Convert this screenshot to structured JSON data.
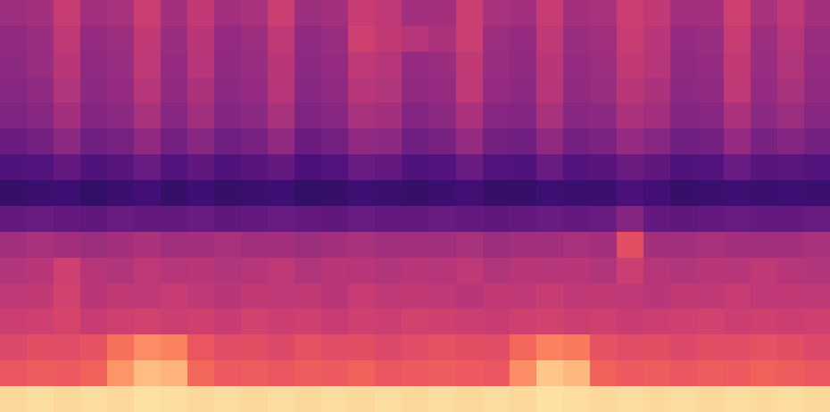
{
  "chart_data": {
    "type": "heatmap",
    "color": "magma",
    "color_range": [
      0,
      1
    ],
    "tick_labels": false,
    "cells": [
      [
        0.44,
        0.46,
        0.54,
        0.45,
        0.47,
        0.55,
        0.46,
        0.53,
        0.45,
        0.47,
        0.55,
        0.44,
        0.46,
        0.54,
        0.52,
        0.45,
        0.46,
        0.55,
        0.47,
        0.45,
        0.54,
        0.46,
        0.47,
        0.55,
        0.53,
        0.45,
        0.46,
        0.56,
        0.47,
        0.52,
        0.46
      ],
      [
        0.41,
        0.43,
        0.52,
        0.42,
        0.44,
        0.53,
        0.43,
        0.51,
        0.42,
        0.44,
        0.52,
        0.41,
        0.43,
        0.56,
        0.53,
        0.5,
        0.48,
        0.55,
        0.44,
        0.42,
        0.52,
        0.43,
        0.45,
        0.54,
        0.51,
        0.42,
        0.43,
        0.54,
        0.44,
        0.5,
        0.43
      ],
      [
        0.4,
        0.43,
        0.51,
        0.41,
        0.43,
        0.52,
        0.42,
        0.5,
        0.41,
        0.43,
        0.51,
        0.4,
        0.42,
        0.52,
        0.5,
        0.42,
        0.43,
        0.53,
        0.43,
        0.41,
        0.51,
        0.42,
        0.44,
        0.53,
        0.5,
        0.41,
        0.42,
        0.53,
        0.43,
        0.49,
        0.42
      ],
      [
        0.39,
        0.41,
        0.49,
        0.4,
        0.42,
        0.5,
        0.41,
        0.48,
        0.4,
        0.42,
        0.5,
        0.39,
        0.41,
        0.5,
        0.49,
        0.41,
        0.42,
        0.52,
        0.42,
        0.4,
        0.5,
        0.41,
        0.43,
        0.51,
        0.48,
        0.4,
        0.41,
        0.52,
        0.42,
        0.47,
        0.41
      ],
      [
        0.37,
        0.39,
        0.46,
        0.38,
        0.4,
        0.47,
        0.39,
        0.45,
        0.38,
        0.4,
        0.47,
        0.37,
        0.39,
        0.47,
        0.46,
        0.38,
        0.4,
        0.48,
        0.39,
        0.38,
        0.47,
        0.39,
        0.4,
        0.48,
        0.45,
        0.38,
        0.39,
        0.48,
        0.4,
        0.44,
        0.39
      ],
      [
        0.32,
        0.34,
        0.4,
        0.33,
        0.35,
        0.41,
        0.34,
        0.39,
        0.33,
        0.35,
        0.41,
        0.32,
        0.34,
        0.41,
        0.4,
        0.33,
        0.35,
        0.42,
        0.34,
        0.33,
        0.41,
        0.34,
        0.36,
        0.42,
        0.39,
        0.33,
        0.34,
        0.42,
        0.35,
        0.38,
        0.34
      ],
      [
        0.25,
        0.26,
        0.3,
        0.25,
        0.27,
        0.31,
        0.26,
        0.29,
        0.25,
        0.27,
        0.3,
        0.24,
        0.26,
        0.31,
        0.3,
        0.25,
        0.26,
        0.31,
        0.26,
        0.25,
        0.31,
        0.26,
        0.27,
        0.32,
        0.29,
        0.25,
        0.26,
        0.31,
        0.27,
        0.28,
        0.26
      ],
      [
        0.19,
        0.2,
        0.21,
        0.18,
        0.2,
        0.22,
        0.19,
        0.21,
        0.19,
        0.2,
        0.21,
        0.18,
        0.19,
        0.21,
        0.2,
        0.19,
        0.2,
        0.22,
        0.19,
        0.19,
        0.21,
        0.2,
        0.2,
        0.24,
        0.22,
        0.19,
        0.2,
        0.21,
        0.2,
        0.21,
        0.2
      ],
      [
        0.3,
        0.31,
        0.3,
        0.29,
        0.31,
        0.3,
        0.3,
        0.31,
        0.29,
        0.3,
        0.31,
        0.3,
        0.29,
        0.31,
        0.3,
        0.3,
        0.31,
        0.3,
        0.29,
        0.3,
        0.31,
        0.3,
        0.31,
        0.38,
        0.3,
        0.29,
        0.3,
        0.31,
        0.3,
        0.3,
        0.31
      ],
      [
        0.45,
        0.47,
        0.46,
        0.44,
        0.46,
        0.48,
        0.45,
        0.46,
        0.47,
        0.45,
        0.46,
        0.44,
        0.46,
        0.47,
        0.45,
        0.46,
        0.45,
        0.47,
        0.44,
        0.46,
        0.45,
        0.47,
        0.46,
        0.62,
        0.46,
        0.45,
        0.47,
        0.46,
        0.45,
        0.46,
        0.47
      ],
      [
        0.49,
        0.51,
        0.56,
        0.5,
        0.49,
        0.52,
        0.5,
        0.51,
        0.49,
        0.5,
        0.52,
        0.49,
        0.51,
        0.5,
        0.49,
        0.51,
        0.5,
        0.52,
        0.49,
        0.51,
        0.5,
        0.51,
        0.49,
        0.55,
        0.5,
        0.49,
        0.51,
        0.5,
        0.52,
        0.5,
        0.49
      ],
      [
        0.52,
        0.53,
        0.57,
        0.51,
        0.53,
        0.52,
        0.54,
        0.52,
        0.51,
        0.53,
        0.52,
        0.53,
        0.51,
        0.54,
        0.52,
        0.53,
        0.52,
        0.51,
        0.53,
        0.52,
        0.54,
        0.52,
        0.53,
        0.52,
        0.51,
        0.53,
        0.52,
        0.54,
        0.52,
        0.53,
        0.52
      ],
      [
        0.55,
        0.56,
        0.58,
        0.54,
        0.56,
        0.57,
        0.55,
        0.56,
        0.54,
        0.57,
        0.55,
        0.56,
        0.54,
        0.56,
        0.55,
        0.57,
        0.56,
        0.55,
        0.54,
        0.56,
        0.57,
        0.55,
        0.56,
        0.54,
        0.55,
        0.56,
        0.57,
        0.55,
        0.56,
        0.55,
        0.56
      ],
      [
        0.6,
        0.62,
        0.61,
        0.63,
        0.7,
        0.76,
        0.74,
        0.64,
        0.61,
        0.62,
        0.6,
        0.63,
        0.61,
        0.62,
        0.6,
        0.61,
        0.63,
        0.62,
        0.61,
        0.68,
        0.74,
        0.72,
        0.63,
        0.61,
        0.62,
        0.6,
        0.62,
        0.61,
        0.63,
        0.62,
        0.6
      ],
      [
        0.64,
        0.66,
        0.65,
        0.67,
        0.78,
        0.86,
        0.84,
        0.68,
        0.65,
        0.66,
        0.64,
        0.66,
        0.65,
        0.67,
        0.64,
        0.65,
        0.66,
        0.65,
        0.64,
        0.76,
        0.88,
        0.85,
        0.67,
        0.65,
        0.66,
        0.64,
        0.66,
        0.65,
        0.67,
        0.66,
        0.64
      ],
      [
        0.92,
        0.93,
        0.92,
        0.93,
        0.92,
        0.94,
        0.93,
        0.92,
        0.93,
        0.92,
        0.93,
        0.92,
        0.93,
        0.92,
        0.93,
        0.92,
        0.93,
        0.92,
        0.93,
        0.92,
        0.94,
        0.93,
        0.92,
        0.93,
        0.92,
        0.93,
        0.92,
        0.93,
        0.92,
        0.93,
        0.92
      ]
    ]
  }
}
